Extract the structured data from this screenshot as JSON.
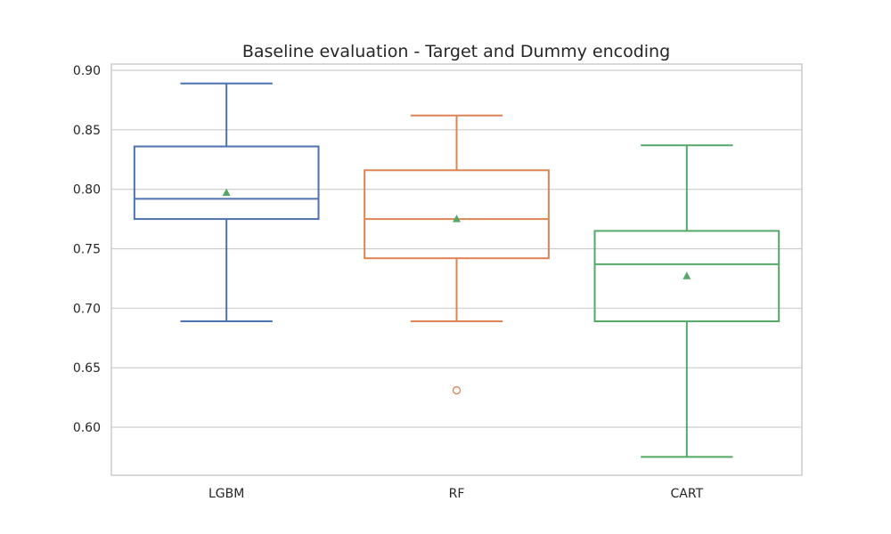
{
  "chart_data": {
    "type": "box",
    "title": "Baseline evaluation - Target and Dummy encoding",
    "xlabel": "",
    "ylabel": "",
    "ylim": [
      0.56,
      0.905
    ],
    "yticks": [
      0.6,
      0.65,
      0.7,
      0.75,
      0.8,
      0.85,
      0.9
    ],
    "ytick_labels": [
      "0.60",
      "0.65",
      "0.70",
      "0.75",
      "0.80",
      "0.85",
      "0.90"
    ],
    "grid": true,
    "categories": [
      "LGBM",
      "RF",
      "CART"
    ],
    "series": [
      {
        "category": "LGBM",
        "color": "#4c72b0",
        "whisker_low": 0.689,
        "q1": 0.775,
        "median": 0.792,
        "q3": 0.836,
        "whisker_high": 0.889,
        "mean": 0.797,
        "outliers": []
      },
      {
        "category": "RF",
        "color": "#dd8452",
        "whisker_low": 0.689,
        "q1": 0.742,
        "median": 0.775,
        "q3": 0.816,
        "whisker_high": 0.862,
        "mean": 0.775,
        "outliers": [
          0.631
        ]
      },
      {
        "category": "CART",
        "color": "#55a868",
        "whisker_low": 0.575,
        "q1": 0.689,
        "median": 0.737,
        "q3": 0.765,
        "whisker_high": 0.837,
        "mean": 0.727,
        "outliers": []
      }
    ],
    "mean_marker_color": "#55a868"
  }
}
